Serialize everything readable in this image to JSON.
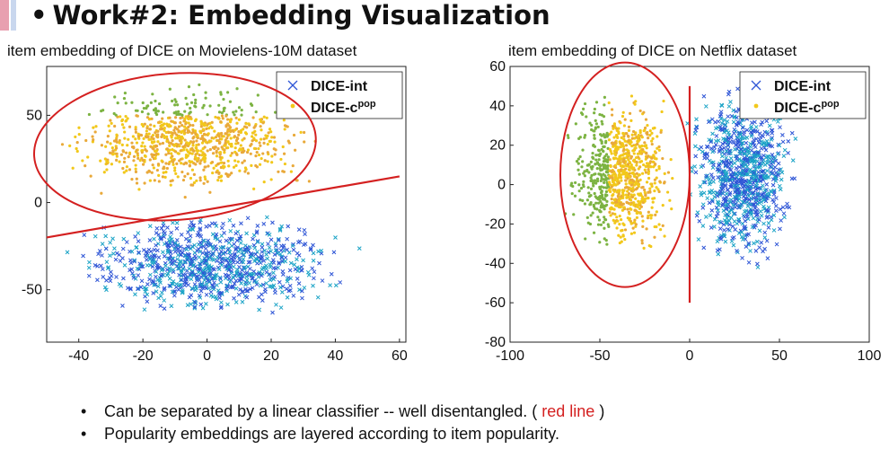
{
  "slide": {
    "bullet": "•",
    "title": "Work#2: Embedding Visualization"
  },
  "bullets": [
    {
      "marker": "•",
      "text": "Can be separated by a linear classifier  -- well disentangled.   (",
      "note": "red line",
      "close": ")"
    },
    {
      "marker": "•",
      "text": "Popularity embeddings are layered according to item popularity."
    }
  ],
  "colors": {
    "int_dark": "#2e55d6",
    "int_light": "#1aa3c6",
    "pop_yellow": "#f2c81b",
    "pop_orange": "#e9a93a",
    "pop_green": "#7cb342",
    "annotation_red": "#d42020"
  },
  "chart_data": [
    {
      "type": "scatter",
      "title": "item embedding of DICE on Movielens-10M dataset",
      "xlim": [
        -50,
        62
      ],
      "ylim": [
        -80,
        78
      ],
      "xticks": [
        -40,
        -20,
        0,
        20,
        40,
        60
      ],
      "yticks": [
        -50,
        0,
        50
      ],
      "legend_position": "top-right",
      "series": [
        {
          "name": "DICE-int",
          "marker": "x",
          "cluster": {
            "cx": 2,
            "cy": -35,
            "rx": 48,
            "ry": 32
          }
        },
        {
          "name": "DICE-c",
          "name_sup": "pop",
          "marker": "dot",
          "cluster": {
            "cx": -5,
            "cy": 35,
            "rx": 45,
            "ry": 35
          }
        }
      ],
      "annotations": [
        {
          "kind": "ellipse",
          "cx": -10,
          "cy": 32,
          "rx": 44,
          "ry": 42
        },
        {
          "kind": "line",
          "x1": -50,
          "y1": -20,
          "x2": 60,
          "y2": 15
        }
      ]
    },
    {
      "type": "scatter",
      "title": "item embedding of DICE on Netflix dataset",
      "xlim": [
        -100,
        100
      ],
      "ylim": [
        -80,
        60
      ],
      "xticks": [
        -100,
        -50,
        0,
        50,
        100
      ],
      "yticks": [
        -80,
        -60,
        -40,
        -20,
        0,
        20,
        40,
        60
      ],
      "legend_position": "top-right",
      "series": [
        {
          "name": "DICE-int",
          "marker": "x",
          "cluster": {
            "cx": 30,
            "cy": 5,
            "rx": 35,
            "ry": 52
          }
        },
        {
          "name": "DICE-c",
          "name_sup": "pop",
          "marker": "dot",
          "cluster": {
            "cx": -38,
            "cy": 5,
            "rx": 35,
            "ry": 45
          }
        }
      ],
      "annotations": [
        {
          "kind": "ellipse",
          "cx": -36,
          "cy": 5,
          "rx": 36,
          "ry": 57
        },
        {
          "kind": "line",
          "x1": 0,
          "y1": 50,
          "x2": 0,
          "y2": -60
        }
      ]
    }
  ]
}
